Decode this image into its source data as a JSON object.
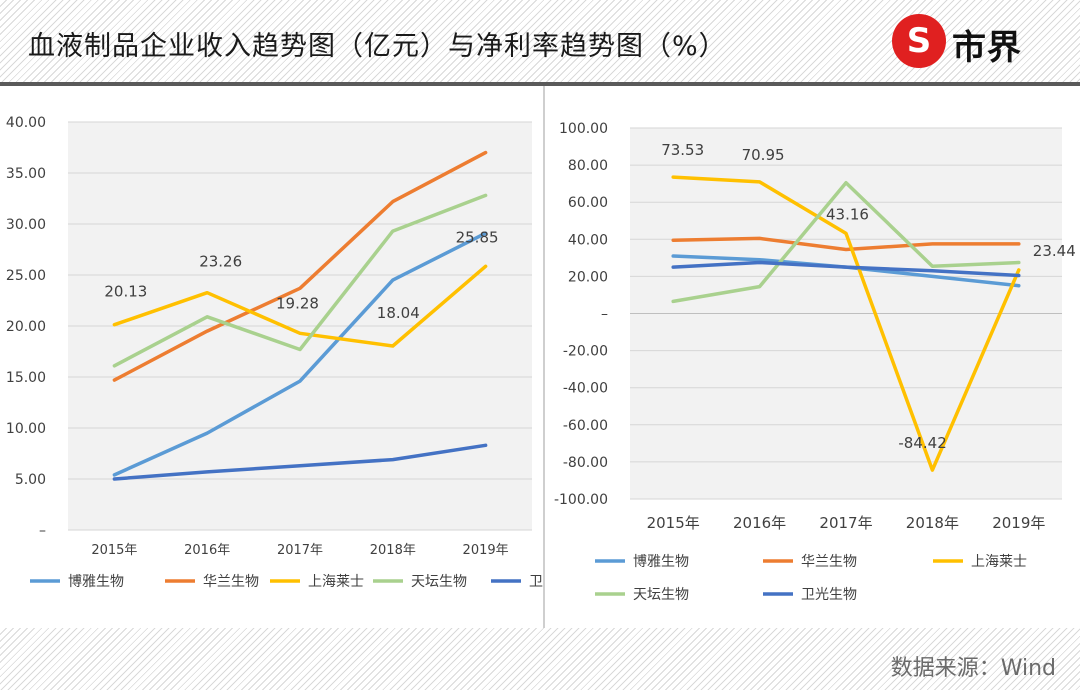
{
  "header": {
    "title": "血液制品企业收入趋势图（亿元）与净利率趋势图（%）",
    "logo_text": "市界",
    "logo_mark": "S"
  },
  "footer": {
    "source": "数据来源：Wind"
  },
  "colors": {
    "博雅生物": "#5b9bd5",
    "华兰生物": "#ed7d31",
    "上海莱士": "#ffc000",
    "天坛生物": "#a9d18e",
    "卫光生物": "#4472c4"
  },
  "chart_data": [
    {
      "type": "line",
      "categories": [
        "2015年",
        "2016年",
        "2017年",
        "2018年",
        "2019年"
      ],
      "ylim": [
        0,
        40
      ],
      "yticks": [
        "–",
        "5.00",
        "10.00",
        "15.00",
        "20.00",
        "25.00",
        "30.00",
        "35.00",
        "40.00"
      ],
      "grid": true,
      "legend_position": "bottom",
      "series": [
        {
          "name": "博雅生物",
          "values": [
            5.4,
            9.5,
            14.6,
            24.5,
            29.1
          ]
        },
        {
          "name": "华兰生物",
          "values": [
            14.7,
            19.5,
            23.7,
            32.2,
            37.0
          ]
        },
        {
          "name": "上海莱士",
          "values": [
            20.13,
            23.26,
            19.28,
            18.04,
            25.85
          ]
        },
        {
          "name": "天坛生物",
          "values": [
            16.1,
            20.9,
            17.7,
            29.3,
            32.8
          ]
        },
        {
          "name": "卫光生物",
          "values": [
            5.0,
            5.7,
            6.3,
            6.9,
            8.3
          ]
        }
      ],
      "annotations": [
        {
          "series": "上海莱士",
          "index": 0,
          "text": "20.13"
        },
        {
          "series": "上海莱士",
          "index": 1,
          "text": "23.26"
        },
        {
          "series": "上海莱士",
          "index": 2,
          "text": "19.28"
        },
        {
          "series": "上海莱士",
          "index": 3,
          "text": "18.04"
        },
        {
          "series": "上海莱士",
          "index": 4,
          "text": "25.85"
        }
      ]
    },
    {
      "type": "line",
      "categories": [
        "2015年",
        "2016年",
        "2017年",
        "2018年",
        "2019年"
      ],
      "ylim": [
        -100,
        100
      ],
      "yticks": [
        "-100.00",
        "-80.00",
        "-60.00",
        "-40.00",
        "-20.00",
        "–",
        "20.00",
        "40.00",
        "60.00",
        "80.00",
        "100.00"
      ],
      "grid": true,
      "legend_position": "bottom",
      "series": [
        {
          "name": "博雅生物",
          "values": [
            31,
            29,
            25,
            20,
            15
          ]
        },
        {
          "name": "华兰生物",
          "values": [
            39.5,
            40.5,
            34.5,
            37.5,
            37.5
          ]
        },
        {
          "name": "上海莱士",
          "values": [
            73.53,
            70.95,
            43.16,
            -84.42,
            23.44
          ]
        },
        {
          "name": "天坛生物",
          "values": [
            6.5,
            14.5,
            70.5,
            25.5,
            27.5
          ]
        },
        {
          "name": "卫光生物",
          "values": [
            25,
            27.5,
            25,
            23,
            20.5
          ]
        }
      ],
      "annotations": [
        {
          "series": "上海莱士",
          "index": 0,
          "text": "73.53"
        },
        {
          "series": "上海莱士",
          "index": 1,
          "text": "70.95"
        },
        {
          "series": "上海莱士",
          "index": 2,
          "text": "43.16"
        },
        {
          "series": "上海莱士",
          "index": 3,
          "text": "-84.42"
        },
        {
          "series": "上海莱士",
          "index": 4,
          "text": "23.44"
        }
      ]
    }
  ]
}
